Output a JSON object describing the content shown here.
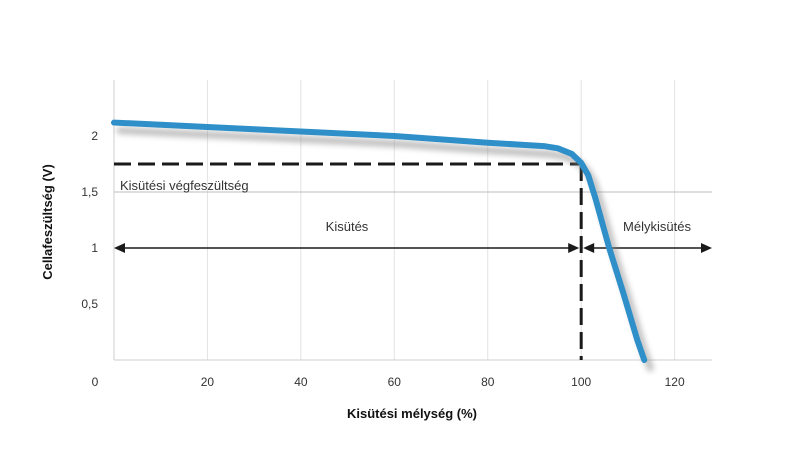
{
  "chart_data": {
    "type": "line",
    "title": "",
    "xlabel": "Kisütési mélység (%)",
    "ylabel": "Cellafeszültség (V)",
    "xlim": [
      0,
      128
    ],
    "ylim": [
      0,
      2.5
    ],
    "x_ticks": [
      0,
      20,
      40,
      60,
      80,
      100,
      120
    ],
    "x_tick_labels": [
      "0",
      "20",
      "40",
      "60",
      "80",
      "100",
      "120"
    ],
    "y_ticks": [
      0.5,
      1,
      1.5,
      2
    ],
    "y_tick_labels": [
      "0,5",
      "1",
      "1,5",
      "2"
    ],
    "grid": "vertical",
    "series": [
      {
        "color": "#2f8fc9",
        "x": [
          0,
          10,
          20,
          30,
          40,
          50,
          60,
          70,
          80,
          88,
          92,
          95,
          98,
          100,
          101.5,
          103,
          106,
          109,
          112,
          113.5
        ],
        "y": [
          2.12,
          2.1,
          2.08,
          2.06,
          2.04,
          2.02,
          2.0,
          1.97,
          1.94,
          1.92,
          1.91,
          1.89,
          1.84,
          1.76,
          1.65,
          1.45,
          1.0,
          0.6,
          0.18,
          0.0
        ]
      }
    ],
    "reference_lines": {
      "end_voltage": 1.75,
      "end_depth": 100,
      "hline_at": 1.5,
      "arrow_y": 1.0
    },
    "annotations": {
      "end_voltage_label": "Kisütési végfeszültség",
      "discharge_label": "Kisütés",
      "deep_discharge_label": "Mélykisütés"
    }
  }
}
